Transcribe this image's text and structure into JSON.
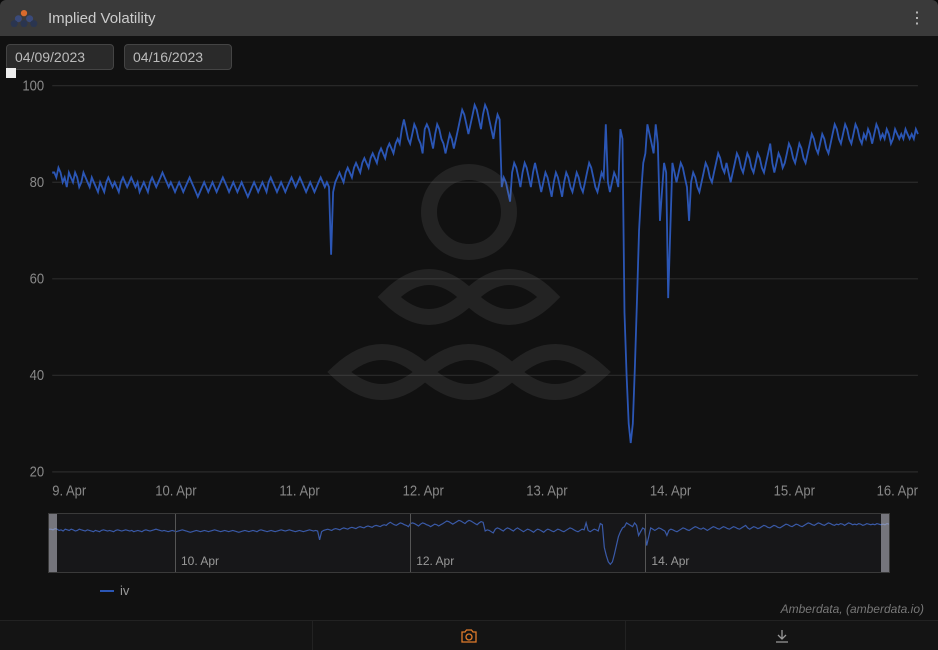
{
  "header": {
    "title": "Implied Volatility"
  },
  "dates": {
    "from": "04/09/2023",
    "to": "04/16/2023"
  },
  "colors": {
    "background": "#111111",
    "header_bg": "#3a3a3a",
    "grid": "#2b2b2b",
    "axis_text": "#888888",
    "series_iv": "#2b56b5",
    "nav_series": "#3a5aa8",
    "nav_fill": "rgba(60,80,130,0.25)",
    "accent_orange": "#e07b2a",
    "logo_top": "#d96a2c",
    "logo_mid": "#3a4a7a",
    "logo_bot": "#2a3550"
  },
  "chart": {
    "type": "line",
    "ylim": [
      20,
      100
    ],
    "ytick_step": 20,
    "yticks": [
      20,
      40,
      60,
      80,
      100
    ],
    "x_labels": [
      "9. Apr",
      "10. Apr",
      "11. Apr",
      "12. Apr",
      "13. Apr",
      "14. Apr",
      "15. Apr",
      "16. Apr"
    ],
    "series": {
      "name": "iv",
      "color": "#2b56b5",
      "values": [
        82,
        82,
        81,
        83,
        82,
        80,
        81,
        79,
        82,
        81,
        80,
        82,
        81,
        79,
        80,
        82,
        81,
        80,
        79,
        81,
        80,
        79,
        78,
        80,
        79,
        78,
        80,
        81,
        80,
        79,
        80,
        79,
        78,
        80,
        81,
        80,
        79,
        80,
        81,
        80,
        79,
        80,
        78,
        79,
        80,
        79,
        78,
        80,
        81,
        80,
        79,
        80,
        81,
        82,
        81,
        80,
        79,
        80,
        79,
        78,
        79,
        80,
        79,
        78,
        79,
        80,
        81,
        80,
        79,
        78,
        77,
        78,
        79,
        80,
        79,
        78,
        79,
        80,
        79,
        78,
        79,
        80,
        81,
        80,
        79,
        78,
        79,
        80,
        79,
        78,
        79,
        80,
        79,
        78,
        77,
        78,
        79,
        80,
        79,
        78,
        79,
        80,
        79,
        78,
        80,
        81,
        80,
        79,
        78,
        79,
        80,
        79,
        78,
        79,
        80,
        81,
        80,
        79,
        80,
        81,
        80,
        79,
        78,
        79,
        80,
        79,
        78,
        79,
        80,
        81,
        80,
        79,
        80,
        79,
        65,
        78,
        80,
        81,
        82,
        81,
        80,
        82,
        83,
        82,
        81,
        83,
        84,
        83,
        82,
        84,
        85,
        84,
        83,
        85,
        86,
        85,
        84,
        86,
        87,
        86,
        85,
        87,
        88,
        87,
        86,
        88,
        89,
        88,
        91,
        93,
        91,
        89,
        88,
        90,
        92,
        91,
        89,
        88,
        86,
        91,
        92,
        91,
        89,
        87,
        90,
        92,
        91,
        89,
        88,
        86,
        88,
        90,
        89,
        87,
        89,
        91,
        93,
        95,
        94,
        92,
        90,
        92,
        94,
        96,
        95,
        93,
        91,
        94,
        96,
        95,
        93,
        91,
        89,
        92,
        94,
        93,
        79,
        81,
        80,
        78,
        76,
        82,
        84,
        83,
        81,
        79,
        82,
        84,
        83,
        81,
        79,
        82,
        84,
        82,
        80,
        78,
        80,
        82,
        81,
        79,
        77,
        80,
        82,
        81,
        79,
        77,
        80,
        82,
        81,
        79,
        78,
        80,
        82,
        81,
        79,
        78,
        80,
        82,
        84,
        83,
        81,
        79,
        78,
        80,
        82,
        81,
        92,
        80,
        78,
        80,
        82,
        81,
        79,
        91,
        89,
        53,
        40,
        30,
        26,
        30,
        42,
        56,
        70,
        78,
        84,
        86,
        92,
        90,
        88,
        86,
        92,
        88,
        72,
        78,
        84,
        82,
        56,
        70,
        84,
        82,
        80,
        82,
        84,
        83,
        81,
        79,
        72,
        80,
        82,
        81,
        79,
        78,
        80,
        82,
        84,
        83,
        81,
        80,
        82,
        84,
        86,
        85,
        83,
        82,
        84,
        82,
        80,
        82,
        84,
        86,
        85,
        83,
        82,
        84,
        86,
        85,
        83,
        82,
        84,
        86,
        85,
        83,
        82,
        84,
        86,
        88,
        84,
        82,
        84,
        86,
        85,
        83,
        84,
        86,
        88,
        87,
        85,
        84,
        86,
        88,
        87,
        85,
        84,
        86,
        88,
        90,
        89,
        87,
        86,
        88,
        90,
        89,
        87,
        86,
        88,
        90,
        92,
        91,
        89,
        88,
        90,
        92,
        91,
        89,
        88,
        90,
        92,
        91,
        89,
        88,
        90,
        89,
        91,
        90,
        88,
        90,
        92,
        91,
        89,
        90,
        89,
        91,
        90,
        88,
        89,
        91,
        90,
        89,
        90,
        89,
        91,
        90,
        89,
        90,
        89,
        91,
        90
      ]
    }
  },
  "navigator": {
    "x_labels": [
      "10. Apr",
      "12. Apr",
      "14. Apr"
    ],
    "x_positions_pct": [
      15,
      43,
      71
    ],
    "handle_left_pct": 0,
    "handle_right_pct": 99
  },
  "legend": {
    "items": [
      {
        "label": "iv",
        "color": "#2b56b5"
      }
    ]
  },
  "credits": "Amberdata, (amberdata.io)"
}
